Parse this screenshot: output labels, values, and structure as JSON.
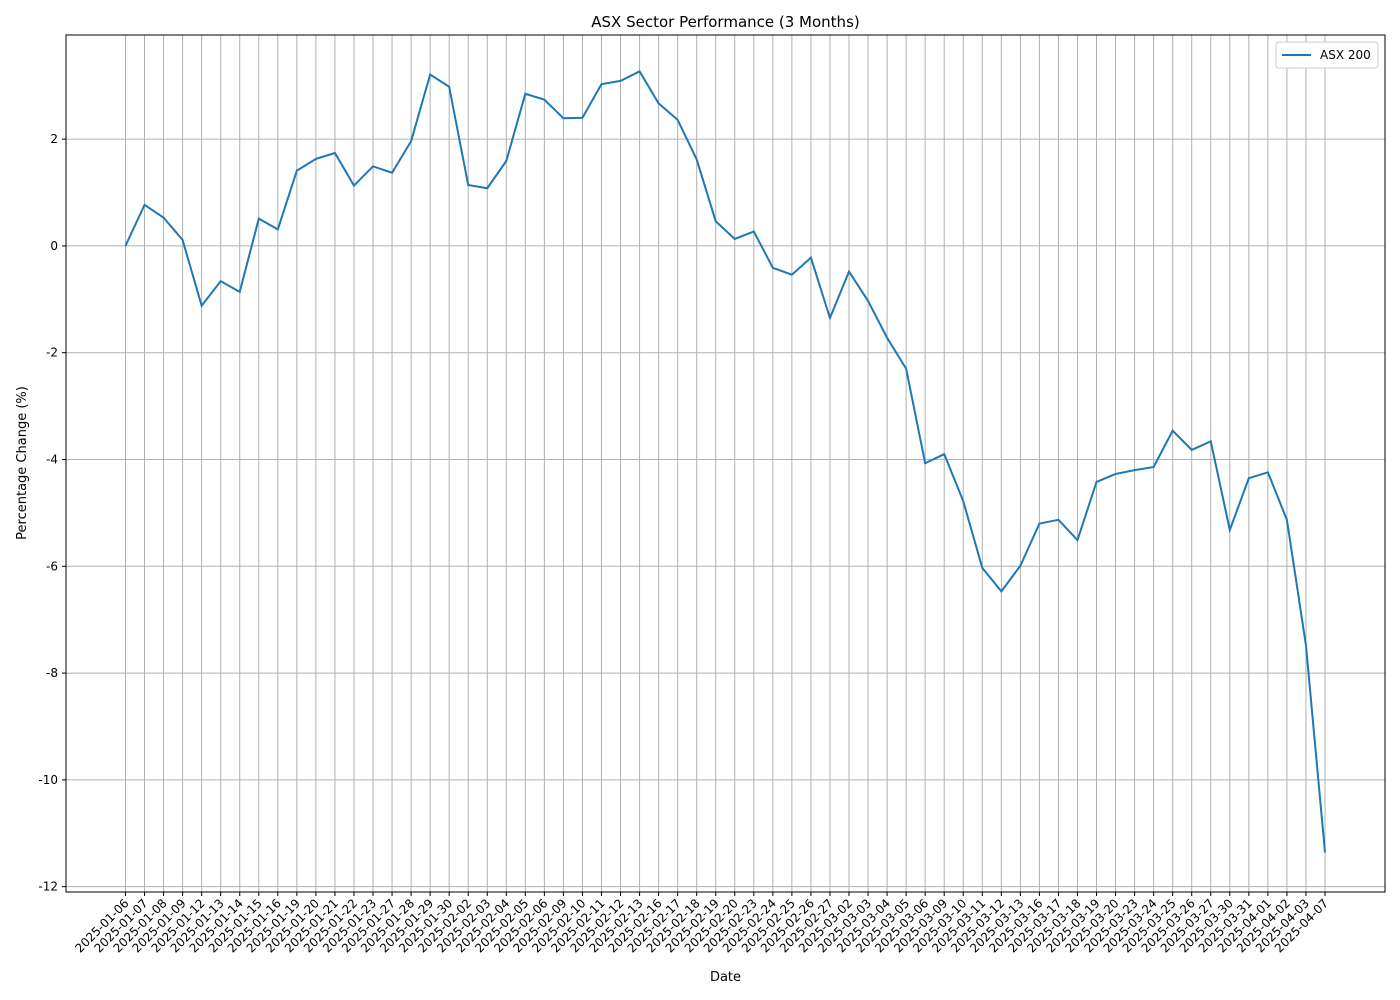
{
  "chart_data": {
    "type": "line",
    "title": "ASX Sector Performance (3 Months)",
    "xlabel": "Date",
    "ylabel": "Percentage Change (%)",
    "ylim": [
      -12.1,
      3.95
    ],
    "yticks": [
      -12,
      -10,
      -8,
      -6,
      -4,
      -2,
      0,
      2
    ],
    "grid": true,
    "legend_position": "top-right",
    "x": [
      "2025-01-06",
      "2025-01-07",
      "2025-01-08",
      "2025-01-09",
      "2025-01-12",
      "2025-01-13",
      "2025-01-14",
      "2025-01-15",
      "2025-01-16",
      "2025-01-19",
      "2025-01-20",
      "2025-01-21",
      "2025-01-22",
      "2025-01-23",
      "2025-01-27",
      "2025-01-28",
      "2025-01-29",
      "2025-01-30",
      "2025-02-02",
      "2025-02-03",
      "2025-02-04",
      "2025-02-05",
      "2025-02-06",
      "2025-02-09",
      "2025-02-10",
      "2025-02-11",
      "2025-02-12",
      "2025-02-13",
      "2025-02-16",
      "2025-02-17",
      "2025-02-18",
      "2025-02-19",
      "2025-02-20",
      "2025-02-23",
      "2025-02-24",
      "2025-02-25",
      "2025-02-26",
      "2025-02-27",
      "2025-03-02",
      "2025-03-03",
      "2025-03-04",
      "2025-03-05",
      "2025-03-06",
      "2025-03-09",
      "2025-03-10",
      "2025-03-11",
      "2025-03-12",
      "2025-03-13",
      "2025-03-16",
      "2025-03-17",
      "2025-03-18",
      "2025-03-19",
      "2025-03-20",
      "2025-03-23",
      "2025-03-24",
      "2025-03-25",
      "2025-03-26",
      "2025-03-27",
      "2025-03-30",
      "2025-03-31",
      "2025-04-01",
      "2025-04-02",
      "2025-04-03",
      "2025-04-07"
    ],
    "series": [
      {
        "name": "ASX 200",
        "color": "#1f77b4",
        "values": [
          0.0,
          0.77,
          0.53,
          0.11,
          -1.12,
          -0.66,
          -0.86,
          0.51,
          0.31,
          1.41,
          1.63,
          1.74,
          1.13,
          1.49,
          1.37,
          1.96,
          3.21,
          2.98,
          1.14,
          1.08,
          1.59,
          2.85,
          2.74,
          2.39,
          2.4,
          3.03,
          3.09,
          3.27,
          2.67,
          2.36,
          1.62,
          0.46,
          0.13,
          0.27,
          -0.41,
          -0.54,
          -0.22,
          -1.35,
          -0.48,
          -1.03,
          -1.72,
          -2.3,
          -4.07,
          -3.9,
          -4.78,
          -6.03,
          -6.47,
          -5.99,
          -5.2,
          -5.13,
          -5.51,
          -4.42,
          -4.27,
          -4.2,
          -4.14,
          -3.46,
          -3.82,
          -3.66,
          -5.32,
          -4.35,
          -4.24,
          -5.13,
          -7.48,
          -11.36
        ]
      }
    ]
  }
}
